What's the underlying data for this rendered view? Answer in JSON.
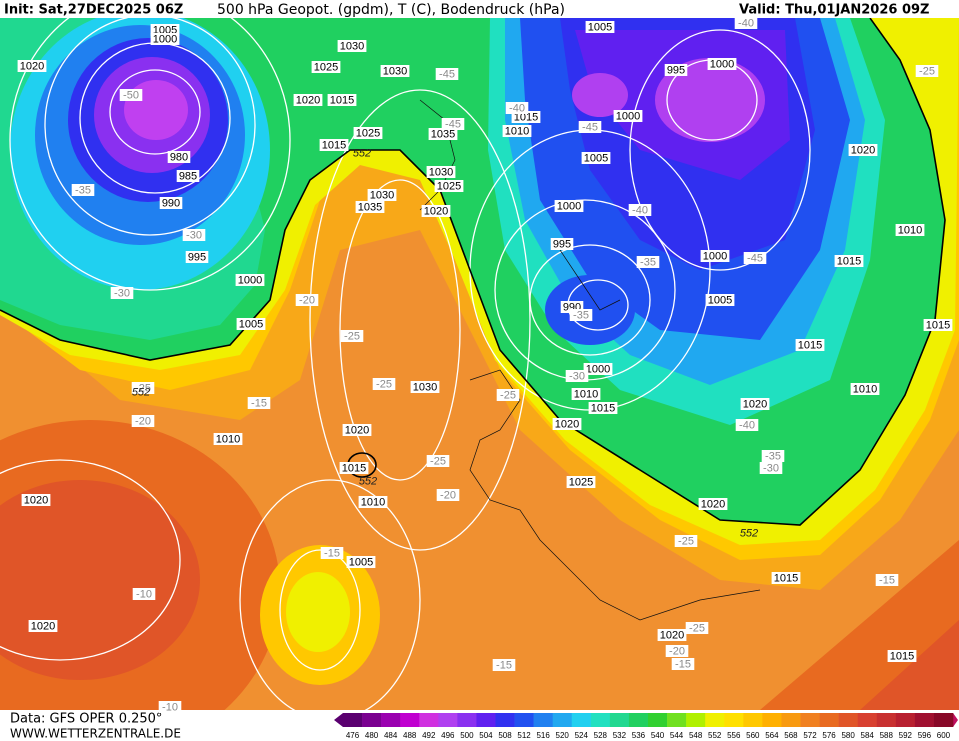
{
  "header": {
    "init": "Init: Sat,27DEC2025 06Z",
    "title": "500 hPa Geopot. (gpdm), T (C), Bodendruck (hPa)",
    "valid": "Valid: Thu,01JAN2026 09Z"
  },
  "footer": {
    "data_source": "Data: GFS OPER 0.250°",
    "website": "WWW.WETTERZENTRALE.DE"
  },
  "colorbar": {
    "labels": [
      476,
      480,
      484,
      488,
      492,
      496,
      500,
      504,
      508,
      512,
      516,
      520,
      524,
      528,
      532,
      536,
      540,
      544,
      548,
      552,
      556,
      560,
      564,
      568,
      572,
      576,
      580,
      584,
      588,
      592,
      596,
      600
    ],
    "colors": [
      "#5a0070",
      "#7a0090",
      "#9a00b0",
      "#c000d0",
      "#d030e0",
      "#b040f0",
      "#8a30f0",
      "#6020f0",
      "#3030f0",
      "#2050f0",
      "#2080f0",
      "#20a8f0",
      "#20d0f0",
      "#20e0c0",
      "#20d890",
      "#20d060",
      "#30d030",
      "#70e020",
      "#b0f000",
      "#f0f000",
      "#ffe000",
      "#ffc800",
      "#ffb000",
      "#f89a10",
      "#f08020",
      "#e86a20",
      "#e05528",
      "#d84030",
      "#c83030",
      "#b82030",
      "#a01030",
      "#880828"
    ]
  },
  "map": {
    "pressure_labels": [
      "1020",
      "1005",
      "1000",
      "1030",
      "1025",
      "1030",
      "1020",
      "1015",
      "1005",
      "995",
      "1000",
      "1015",
      "1010",
      "1000",
      "1025",
      "1035",
      "1015",
      "1030",
      "1025",
      "1030",
      "1035",
      "1020",
      "980",
      "985",
      "990",
      "995",
      "1005",
      "1000",
      "995",
      "1020",
      "1010",
      "1000",
      "1015",
      "1000",
      "1005",
      "990",
      "1005",
      "1015",
      "1015",
      "1030",
      "1000",
      "1010",
      "1015",
      "1010",
      "1020",
      "1010",
      "1020",
      "1020",
      "1015",
      "1025",
      "1010",
      "1020",
      "1020",
      "1005",
      "1015",
      "1020",
      "1020",
      "1015"
    ],
    "temperature_labels": [
      "-50",
      "-45",
      "-45",
      "-45",
      "-35",
      "-30",
      "-30",
      "-40",
      "-40",
      "-35",
      "-45",
      "-35",
      "-40",
      "-25",
      "-20",
      "-25",
      "-25",
      "-30",
      "-25",
      "-25",
      "-20",
      "-15",
      "-25",
      "-20",
      "-40",
      "-35",
      "-30",
      "-25",
      "-15",
      "-10",
      "-15",
      "-25",
      "-20",
      "-15",
      "-15",
      "-10"
    ],
    "geopotential_labels": [
      "552",
      "552",
      "552",
      "552"
    ]
  }
}
